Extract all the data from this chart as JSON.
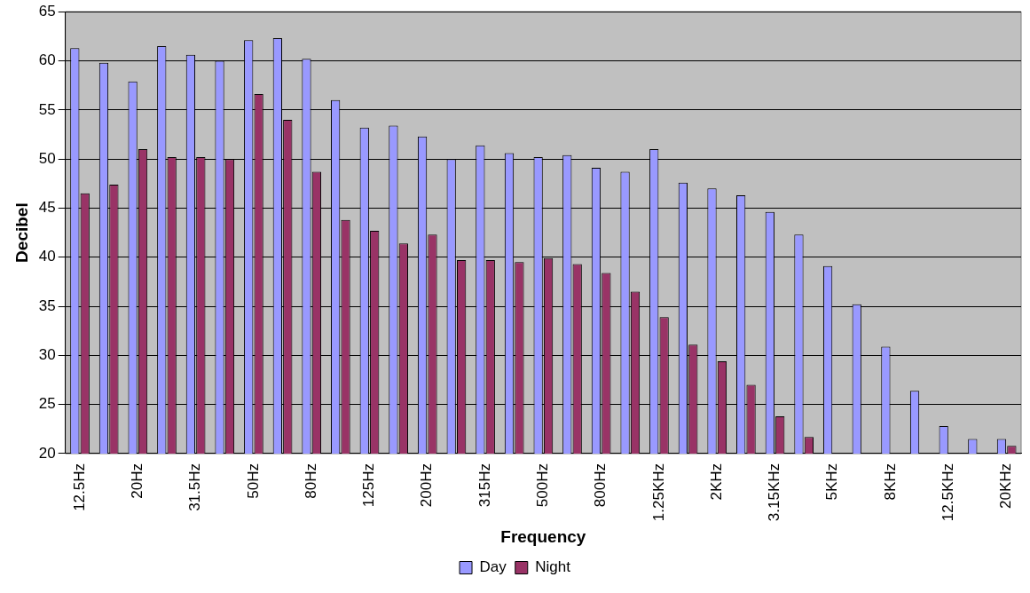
{
  "chart_data": {
    "type": "bar",
    "xlabel": "Frequency",
    "ylabel": "Decibel",
    "categories": [
      "12.5Hz",
      null,
      "20Hz",
      null,
      "31.5Hz",
      null,
      "50Hz",
      null,
      "80Hz",
      null,
      "125Hz",
      null,
      "200Hz",
      null,
      "315Hz",
      null,
      "500Hz",
      null,
      "800Hz",
      null,
      "1.25KHz",
      null,
      "2KHz",
      null,
      "3.15KHz",
      null,
      "5KHz",
      null,
      "8KHz",
      null,
      "12.5KHz",
      null,
      "20KHz"
    ],
    "series": [
      {
        "name": "Day",
        "color": "#9999ff",
        "values": [
          61.3,
          59.8,
          57.9,
          61.5,
          60.6,
          60.0,
          62.1,
          62.3,
          60.2,
          56.0,
          53.2,
          53.4,
          52.3,
          50.0,
          51.4,
          50.6,
          50.2,
          50.4,
          49.1,
          48.7,
          51.0,
          47.6,
          47.0,
          46.3,
          44.6,
          42.3,
          39.1,
          35.2,
          30.9,
          26.4,
          22.8,
          21.5,
          21.5
        ]
      },
      {
        "name": "Night",
        "color": "#993366",
        "values": [
          46.5,
          47.4,
          51.0,
          50.2,
          50.2,
          50.0,
          56.6,
          54.0,
          48.7,
          43.8,
          42.7,
          41.4,
          42.3,
          39.7,
          39.7,
          39.5,
          39.9,
          39.3,
          38.4,
          36.5,
          33.9,
          31.1,
          29.4,
          27.0,
          23.8,
          21.7,
          null,
          null,
          null,
          null,
          null,
          null,
          20.8
        ]
      }
    ],
    "ylim": [
      20,
      65
    ],
    "yticks": [
      20,
      25,
      30,
      35,
      40,
      45,
      50,
      55,
      60,
      65
    ],
    "grid": "y",
    "legend": "bottom"
  }
}
